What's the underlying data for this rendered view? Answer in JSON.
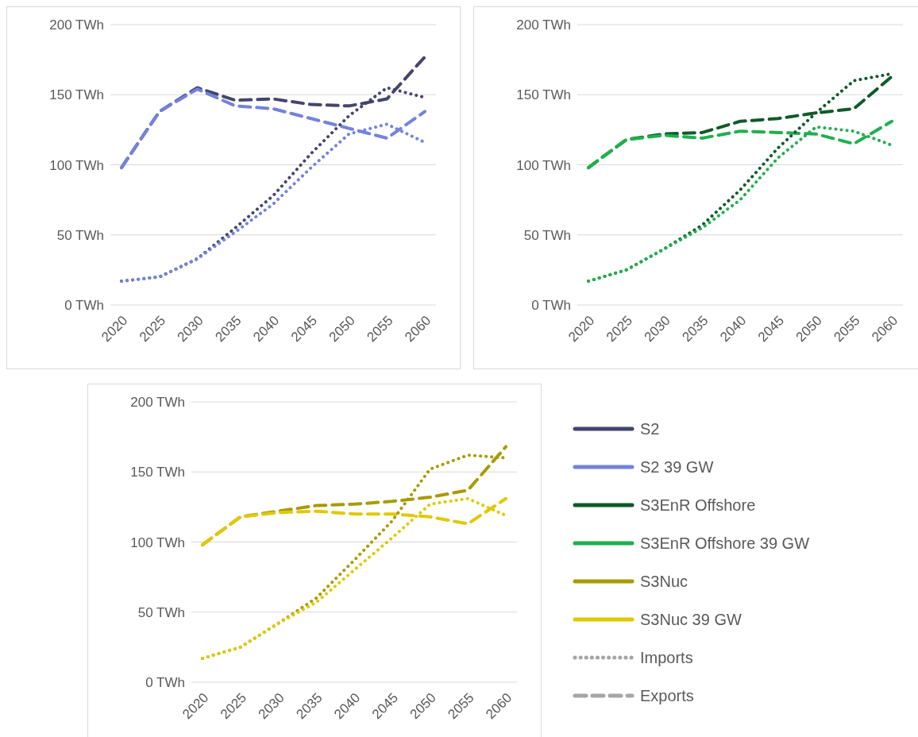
{
  "chart_data": [
    {
      "type": "line",
      "categories": [
        "2020",
        "2025",
        "2030",
        "2035",
        "2040",
        "2045",
        "2050",
        "2055",
        "2060"
      ],
      "ylim": [
        0,
        200
      ],
      "yticks": [
        {
          "value": 0,
          "label": "0 TWh"
        },
        {
          "value": 50,
          "label": "50 TWh"
        },
        {
          "value": 100,
          "label": "100 TWh"
        },
        {
          "value": 150,
          "label": "150 TWh"
        },
        {
          "value": 200,
          "label": "200 TWh"
        }
      ],
      "grid": "y",
      "marker": "none",
      "legend": "right",
      "series": [
        {
          "name": "S2",
          "color": "#44466e",
          "line_style": "dashed",
          "values": [
            98,
            138,
            155,
            146,
            147,
            143,
            142,
            147,
            177
          ]
        },
        {
          "name": "S2 39 GW",
          "color": "#7382dc",
          "line_style": "dashed",
          "values": [
            98,
            138,
            154,
            142,
            140,
            133,
            126,
            119,
            138
          ]
        },
        {
          "color": "#44466e",
          "line_style": "dotted",
          "values": [
            17,
            20,
            33,
            55,
            78,
            108,
            135,
            155,
            148
          ]
        },
        {
          "color": "#7382dc",
          "line_style": "dotted",
          "values": [
            17,
            20,
            33,
            52,
            72,
            98,
            122,
            129,
            116
          ]
        }
      ]
    },
    {
      "type": "line",
      "categories": [
        "2020",
        "2025",
        "2030",
        "2035",
        "2040",
        "2045",
        "2050",
        "2055",
        "2060"
      ],
      "ylim": [
        0,
        200
      ],
      "yticks": [
        {
          "value": 0,
          "label": "0 TWh"
        },
        {
          "value": 50,
          "label": "50 TWh"
        },
        {
          "value": 100,
          "label": "100 TWh"
        },
        {
          "value": 150,
          "label": "150 TWh"
        },
        {
          "value": 200,
          "label": "200 TWh"
        }
      ],
      "grid": "y",
      "marker": "none",
      "legend": "bottom left",
      "series": [
        {
          "name": "S3EnR Offshore",
          "color": "#0f5a2a",
          "line_style": "dashed",
          "values": [
            98,
            118,
            122,
            123,
            131,
            133,
            137,
            140,
            163
          ]
        },
        {
          "name": "S3EnR Offshore 39 GW",
          "color": "#1fb04e",
          "line_style": "dashed",
          "values": [
            98,
            118,
            121,
            119,
            124,
            123,
            122,
            115,
            131
          ]
        },
        {
          "color": "#0f5a2a",
          "line_style": "dotted",
          "values": [
            17,
            25,
            40,
            57,
            82,
            112,
            137,
            160,
            165
          ]
        },
        {
          "color": "#1fb04e",
          "line_style": "dotted",
          "values": [
            17,
            25,
            40,
            55,
            75,
            105,
            127,
            124,
            114
          ]
        }
      ]
    },
    {
      "type": "line",
      "categories": [
        "2020",
        "2025",
        "2030",
        "2035",
        "2040",
        "2045",
        "2050",
        "2055",
        "2060"
      ],
      "ylim": [
        0,
        200
      ],
      "yticks": [
        {
          "value": 0,
          "label": "0 TWh"
        },
        {
          "value": 50,
          "label": "50 TWh"
        },
        {
          "value": 100,
          "label": "100 TWh"
        },
        {
          "value": 150,
          "label": "150 TWh"
        },
        {
          "value": 200,
          "label": "200 TWh"
        }
      ],
      "grid": "y",
      "marker": "none",
      "legend": "right",
      "annotations": [
        "Imports",
        "Exports"
      ],
      "series": [
        {
          "name": "S3Nuc",
          "color": "#a89a00",
          "line_style": "dashed",
          "values": [
            98,
            118,
            122,
            126,
            127,
            129,
            132,
            137,
            168
          ]
        },
        {
          "name": "S3Nuc 39 GW",
          "color": "#e0c900",
          "line_style": "dashed",
          "values": [
            98,
            118,
            121,
            122,
            120,
            120,
            118,
            113,
            131
          ]
        },
        {
          "color": "#a89a00",
          "line_style": "dotted",
          "values": [
            17,
            25,
            42,
            60,
            87,
            115,
            152,
            162,
            160
          ]
        },
        {
          "color": "#e0c900",
          "line_style": "dotted",
          "values": [
            17,
            25,
            42,
            57,
            80,
            103,
            127,
            131,
            119
          ]
        }
      ]
    }
  ]
}
